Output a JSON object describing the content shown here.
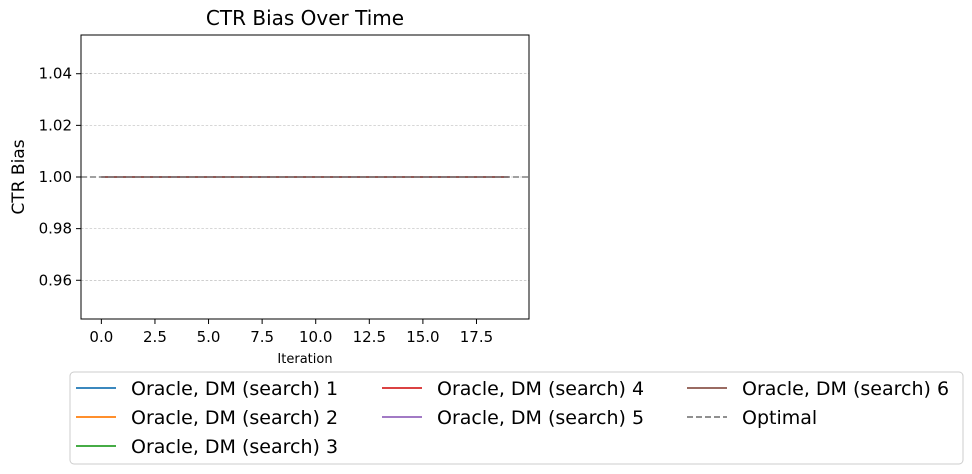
{
  "chart_data": {
    "type": "line",
    "title": "CTR Bias Over Time",
    "xlabel": "Iteration",
    "ylabel": "CTR Bias",
    "xlim": [
      -0.95,
      19.95
    ],
    "ylim": [
      0.945,
      1.055
    ],
    "xticks": [
      0,
      2.5,
      5,
      7.5,
      10,
      12.5,
      15,
      17.5
    ],
    "xtick_labels": [
      "0.0",
      "2.5",
      "5.0",
      "7.5",
      "10.0",
      "12.5",
      "15.0",
      "17.5"
    ],
    "yticks": [
      0.96,
      0.98,
      1.0,
      1.02,
      1.04
    ],
    "ytick_labels": [
      "0.96",
      "0.98",
      "1.00",
      "1.02",
      "1.04"
    ],
    "grid": "y-dashed",
    "legend_placement": "below",
    "x": [
      0,
      1,
      2,
      3,
      4,
      5,
      6,
      7,
      8,
      9,
      10,
      11,
      12,
      13,
      14,
      15,
      16,
      17,
      18,
      19
    ],
    "series": [
      {
        "name": "Oracle, DM (search) 1",
        "color": "#1f77b4",
        "style": "solid",
        "values": [
          1,
          1,
          1,
          1,
          1,
          1,
          1,
          1,
          1,
          1,
          1,
          1,
          1,
          1,
          1,
          1,
          1,
          1,
          1,
          1
        ]
      },
      {
        "name": "Oracle, DM (search) 2",
        "color": "#ff7f0e",
        "style": "solid",
        "values": [
          1,
          1,
          1,
          1,
          1,
          1,
          1,
          1,
          1,
          1,
          1,
          1,
          1,
          1,
          1,
          1,
          1,
          1,
          1,
          1
        ]
      },
      {
        "name": "Oracle, DM (search) 3",
        "color": "#2ca02c",
        "style": "solid",
        "values": [
          1,
          1,
          1,
          1,
          1,
          1,
          1,
          1,
          1,
          1,
          1,
          1,
          1,
          1,
          1,
          1,
          1,
          1,
          1,
          1
        ]
      },
      {
        "name": "Oracle, DM (search) 4",
        "color": "#d62728",
        "style": "solid",
        "values": [
          1,
          1,
          1,
          1,
          1,
          1,
          1,
          1,
          1,
          1,
          1,
          1,
          1,
          1,
          1,
          1,
          1,
          1,
          1,
          1
        ]
      },
      {
        "name": "Oracle, DM (search) 5",
        "color": "#9467bd",
        "style": "solid",
        "values": [
          1,
          1,
          1,
          1,
          1,
          1,
          1,
          1,
          1,
          1,
          1,
          1,
          1,
          1,
          1,
          1,
          1,
          1,
          1,
          1
        ]
      },
      {
        "name": "Oracle, DM (search) 6",
        "color": "#8c564b",
        "style": "solid",
        "values": [
          1,
          1,
          1,
          1,
          1,
          1,
          1,
          1,
          1,
          1,
          1,
          1,
          1,
          1,
          1,
          1,
          1,
          1,
          1,
          1
        ]
      }
    ],
    "reference_line": {
      "name": "Optimal",
      "y": 1.0,
      "color": "#808080",
      "style": "dashed"
    },
    "legend_order": [
      "Oracle, DM (search) 1",
      "Oracle, DM (search) 2",
      "Oracle, DM (search) 3",
      "Oracle, DM (search) 4",
      "Oracle, DM (search) 5",
      "Oracle, DM (search) 6",
      "Optimal"
    ]
  }
}
